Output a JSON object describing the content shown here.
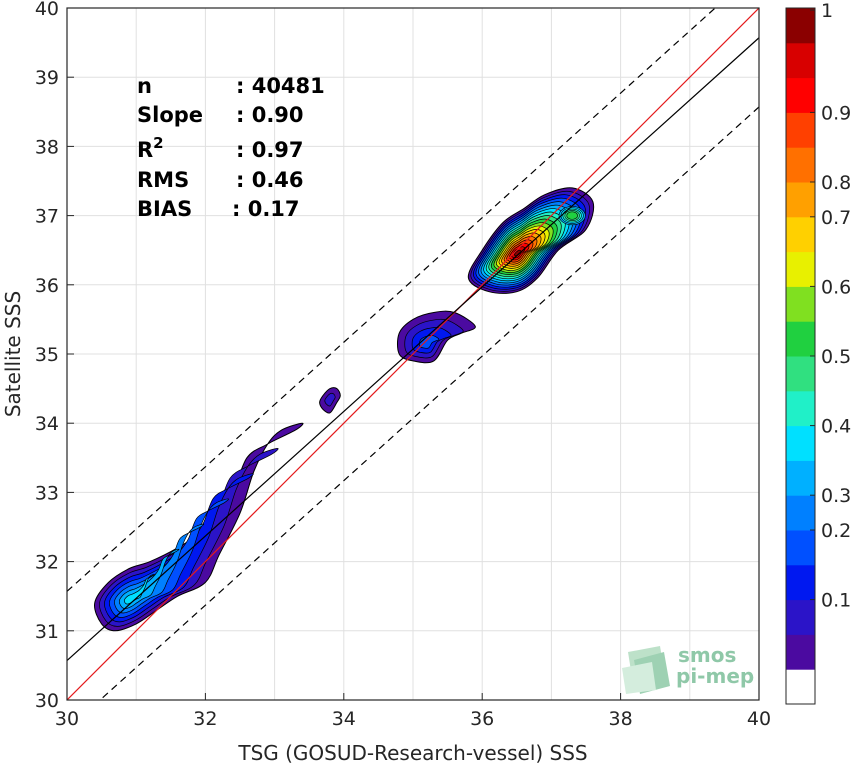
{
  "chart_data": {
    "type": "contour-scatter",
    "xlabel": "TSG (GOSUD-Research-vessel) SSS",
    "ylabel": "Satellite SSS",
    "xlim": [
      30,
      40
    ],
    "ylim": [
      30,
      40
    ],
    "xticks": [
      "30",
      "32",
      "34",
      "36",
      "38",
      "40"
    ],
    "yticks": [
      "30",
      "31",
      "32",
      "33",
      "34",
      "35",
      "36",
      "37",
      "38",
      "39",
      "40"
    ],
    "grid": true,
    "stats": [
      {
        "label": "n",
        "value": ": 40481"
      },
      {
        "label": "Slope",
        "value": ": 0.90"
      },
      {
        "label": "R",
        "sup": "2",
        "value": ": 0.97"
      },
      {
        "label": "RMS",
        "value": ": 0.46"
      },
      {
        "label": "BIAS",
        "value": ": 0.17"
      }
    ],
    "lines": {
      "one_to_one": {
        "color": "#e41a1c",
        "slope": 1.0,
        "intercept": 0.0
      },
      "fit": {
        "color": "#000000",
        "slope": 0.9,
        "intercept": 3.57
      },
      "upper_dashed": {
        "color": "#000000",
        "slope": 0.9,
        "intercept": 4.57
      },
      "lower_dashed": {
        "color": "#000000",
        "slope": 0.9,
        "intercept": 2.57
      }
    },
    "density_clusters": [
      {
        "name": "low",
        "points": [
          [
            30.5,
            31.1
          ],
          [
            30.7,
            31.0
          ],
          [
            31.0,
            31.1
          ],
          [
            31.3,
            31.3
          ],
          [
            31.6,
            31.5
          ],
          [
            32.0,
            31.7
          ],
          [
            32.2,
            32.1
          ],
          [
            32.5,
            32.7
          ],
          [
            32.7,
            33.3
          ],
          [
            32.9,
            33.7
          ],
          [
            33.1,
            33.9
          ],
          [
            33.4,
            34.0
          ],
          [
            33.3,
            33.9
          ],
          [
            32.9,
            33.7
          ],
          [
            32.6,
            33.5
          ],
          [
            32.4,
            33.0
          ],
          [
            32.2,
            32.7
          ],
          [
            31.9,
            32.4
          ],
          [
            31.6,
            32.2
          ],
          [
            31.2,
            32.0
          ],
          [
            30.9,
            31.9
          ],
          [
            30.6,
            31.7
          ],
          [
            30.4,
            31.4
          ]
        ],
        "peak": 0.35,
        "peak_at": [
          30.9,
          31.45
        ]
      },
      {
        "name": "small",
        "points": [
          [
            33.7,
            34.4
          ],
          [
            33.8,
            34.5
          ],
          [
            33.9,
            34.5
          ],
          [
            33.95,
            34.4
          ],
          [
            33.9,
            34.3
          ],
          [
            33.8,
            34.15
          ],
          [
            33.7,
            34.2
          ],
          [
            33.65,
            34.3
          ]
        ],
        "peak": 0.1,
        "peak_at": [
          33.8,
          34.35
        ]
      },
      {
        "name": "mid",
        "points": [
          [
            34.8,
            35.3
          ],
          [
            35.0,
            35.5
          ],
          [
            35.3,
            35.6
          ],
          [
            35.6,
            35.6
          ],
          [
            35.9,
            35.4
          ],
          [
            35.7,
            35.3
          ],
          [
            35.5,
            35.2
          ],
          [
            35.3,
            34.9
          ],
          [
            35.0,
            34.9
          ],
          [
            34.8,
            35.0
          ]
        ],
        "peak": 0.2,
        "peak_at": [
          35.2,
          35.15
        ]
      },
      {
        "name": "high",
        "points": [
          [
            35.8,
            36.1
          ],
          [
            36.0,
            36.5
          ],
          [
            36.3,
            36.9
          ],
          [
            36.6,
            37.1
          ],
          [
            36.9,
            37.3
          ],
          [
            37.3,
            37.4
          ],
          [
            37.6,
            37.2
          ],
          [
            37.5,
            36.8
          ],
          [
            37.1,
            36.5
          ],
          [
            36.8,
            36.1
          ],
          [
            36.5,
            35.9
          ],
          [
            36.1,
            35.9
          ]
        ],
        "peak": 1.0,
        "peak_at": [
          36.5,
          36.45
        ],
        "secondary": {
          "peak": 0.5,
          "at": [
            37.3,
            37.0
          ]
        }
      }
    ],
    "colorbar": {
      "ticks": [
        "0.1",
        "0.2",
        "0.3",
        "0.4",
        "0.5",
        "0.6",
        "0.7",
        "0.8",
        "0.9",
        "1"
      ],
      "levels": 19,
      "colors": [
        "#ffffff",
        "#4b0aa0",
        "#2b14c8",
        "#0018f0",
        "#0050ff",
        "#0080ff",
        "#00b0ff",
        "#00e0ff",
        "#20f0c8",
        "#30e080",
        "#20d040",
        "#80e020",
        "#e8f000",
        "#ffd000",
        "#ffa000",
        "#ff7000",
        "#ff4000",
        "#ff0000",
        "#d80000",
        "#8b0000"
      ]
    },
    "logo": {
      "line1": "smos",
      "line2": "pi-mep"
    }
  }
}
